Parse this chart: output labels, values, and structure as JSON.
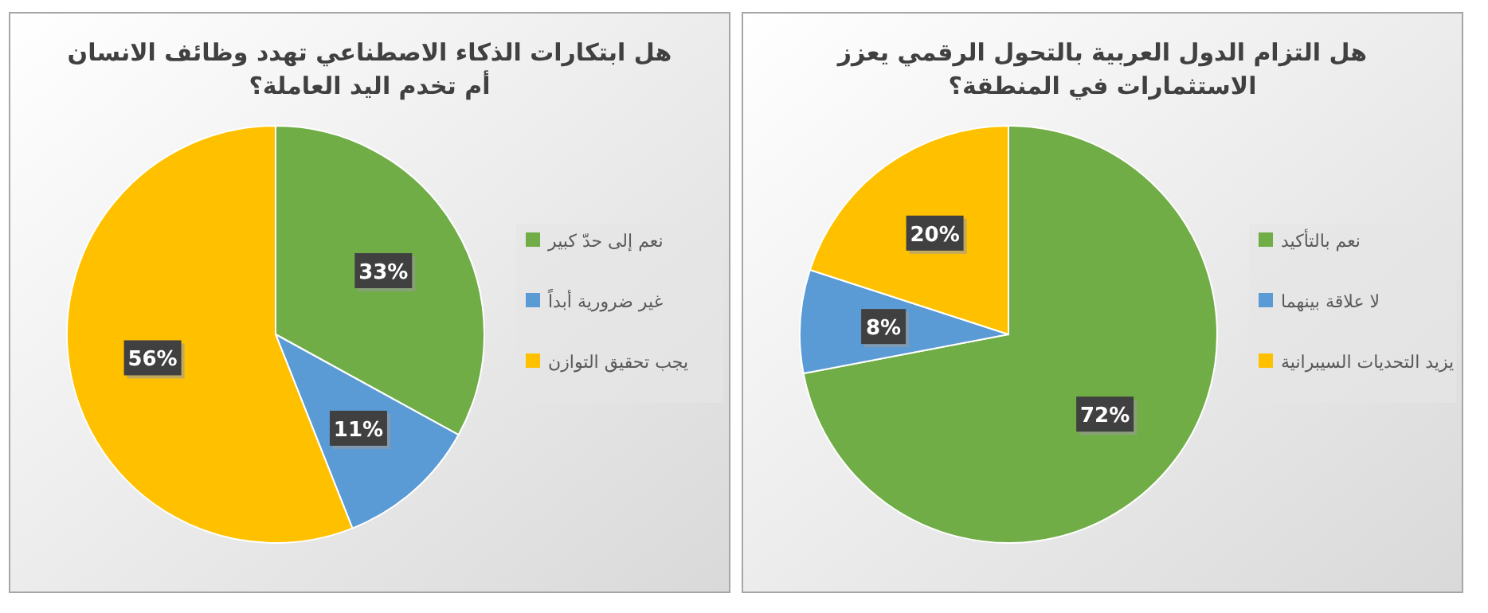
{
  "chart_data": [
    {
      "type": "pie",
      "title": "هل ابتكارات الذكاء الاصطناعي تهدد وظائف الانسان\nأم تخدم اليد العاملة؟",
      "categories": [
        "نعم إلى حدّ كبير",
        "غير ضرورية أبداً",
        "يجب تحقيق التوازن"
      ],
      "values": [
        33,
        11,
        56
      ],
      "colors": [
        "#70ad47",
        "#5b9bd5",
        "#ffc000"
      ],
      "value_labels": [
        "33%",
        "11%",
        "56%"
      ],
      "legend": "right"
    },
    {
      "type": "pie",
      "title": "هل التزام الدول العربية بالتحول الرقمي يعزز\nالاستثمارات في المنطقة؟",
      "categories": [
        "نعم بالتأكيد",
        "لا علاقة بينهما",
        "يزيد التحديات السيبرانية"
      ],
      "values": [
        72,
        8,
        20
      ],
      "colors": [
        "#70ad47",
        "#5b9bd5",
        "#ffc000"
      ],
      "value_labels": [
        "72%",
        "8%",
        "20%"
      ],
      "legend": "right"
    }
  ]
}
